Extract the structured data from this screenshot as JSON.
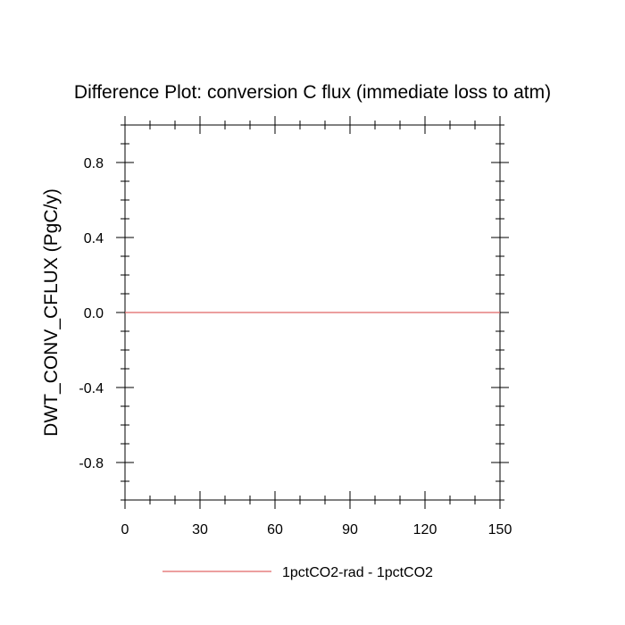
{
  "chart_data": {
    "type": "line",
    "title": "Difference Plot: conversion C flux (immediate loss to atm)",
    "xlabel": "",
    "ylabel": "DWT_CONV_CFLUX  (PgC/y)",
    "xlim": [
      0,
      150
    ],
    "ylim": [
      -1,
      1
    ],
    "x_ticks": [
      0,
      30,
      60,
      90,
      120,
      150
    ],
    "x_tick_labels": [
      "0",
      "30",
      "60",
      "90",
      "120",
      "150"
    ],
    "y_ticks": [
      -0.8,
      -0.4,
      0.0,
      0.4,
      0.8
    ],
    "y_tick_labels": [
      "-0.8",
      "-0.4",
      "0.0",
      "0.4",
      "0.8"
    ],
    "grid": false,
    "legend_position": "bottom-center",
    "series": [
      {
        "name": "1pctCO2-rad - 1pctCO2",
        "color": "#e06666",
        "x": [
          0,
          150
        ],
        "y": [
          0.0,
          0.0
        ]
      }
    ]
  }
}
